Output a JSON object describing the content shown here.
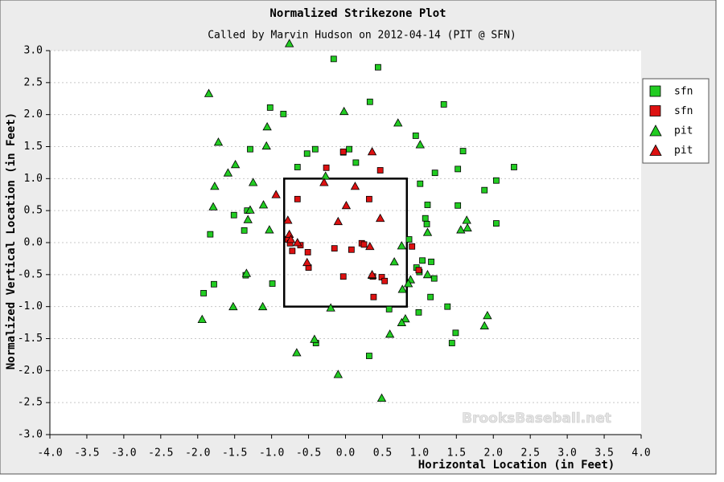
{
  "chart_data": {
    "type": "scatter",
    "title": "Normalized Strikezone Plot",
    "subtitle": "Called by Marvin Hudson on 2012-04-14 (PIT @ SFN)",
    "x_label": "Horizontal Location (in Feet)",
    "y_label": "Normalized Vertical Location (in Feet)",
    "watermark": "BrooksBaseball.net",
    "xlim": [
      -4,
      4
    ],
    "ylim": [
      -3,
      3
    ],
    "xticks": [
      {
        "value": -4,
        "label": "-4.0"
      },
      -3.5,
      {
        "value": -3,
        "label": "-3.0"
      },
      -2.5,
      {
        "value": -2,
        "label": "-2.0"
      },
      -1.5,
      {
        "value": -1,
        "label": "-1.0"
      },
      -0.5,
      {
        "value": 0,
        "label": "0.0"
      },
      0.5,
      {
        "value": 1,
        "label": "1.0"
      },
      1.5,
      {
        "value": 2,
        "label": "2.0"
      },
      2.5,
      {
        "value": 3,
        "label": "3.0"
      },
      3.5,
      {
        "value": 4,
        "label": "4.0"
      }
    ],
    "yticks": [
      {
        "value": -3,
        "label": "-3.0"
      },
      -2.5,
      {
        "value": -2,
        "label": "-2.0"
      },
      -1.5,
      {
        "value": -1,
        "label": "-1.0"
      },
      -0.5,
      {
        "value": 0,
        "label": "0.0"
      },
      0.5,
      {
        "value": 1,
        "label": "1.0"
      },
      1.5,
      {
        "value": 2,
        "label": "2.0"
      },
      2.5,
      {
        "value": 3,
        "label": "3.0"
      }
    ],
    "grid": true,
    "legend": "right",
    "strike_zone": {
      "x": [
        -0.83,
        0.83
      ],
      "y": [
        -1,
        1
      ]
    },
    "series": [
      {
        "name": "sfn",
        "marker": "square",
        "color": "#22cc22",
        "x": [
          -0.16,
          0.44,
          -1.02,
          -0.84,
          0.33,
          1.33,
          -1.29,
          -0.52,
          -0.41,
          0.05,
          -0.03,
          0.95,
          1.59,
          0.14,
          -0.65,
          1.21,
          1.52,
          2.28,
          2.04,
          1.88,
          1.01,
          1.11,
          1.52,
          1.08,
          1.1,
          2.04,
          -1.51,
          -1.33,
          -1.37,
          -1.83,
          0.86,
          1.04,
          1.16,
          0.96,
          1.0,
          1.2,
          -1.35,
          -0.99,
          -1.78,
          -1.92,
          1.15,
          1.38,
          0.59,
          0.99,
          1.49,
          1.44,
          -0.4,
          0.32
        ],
        "values": [
          2.87,
          2.74,
          2.11,
          2.01,
          2.2,
          2.16,
          1.46,
          1.39,
          1.46,
          1.46,
          1.41,
          1.67,
          1.43,
          1.25,
          1.18,
          1.09,
          1.15,
          1.18,
          0.97,
          0.82,
          0.92,
          0.59,
          0.58,
          0.38,
          0.29,
          0.3,
          0.43,
          0.5,
          0.19,
          0.13,
          0.05,
          -0.28,
          -0.3,
          -0.39,
          -0.46,
          -0.56,
          -0.51,
          -0.64,
          -0.65,
          -0.79,
          -0.85,
          -1.0,
          -1.04,
          -1.09,
          -1.41,
          -1.57,
          -1.57,
          -1.77
        ]
      },
      {
        "name": "sfn",
        "marker": "square",
        "color": "#dd1111",
        "x": [
          -0.03,
          -0.26,
          0.47,
          -0.65,
          0.32,
          -0.78,
          -0.75,
          -0.72,
          -0.61,
          -0.51,
          -0.15,
          0.08,
          0.22,
          0.25,
          0.9,
          -0.5,
          -0.03,
          0.49,
          0.53,
          0.99,
          0.37,
          0.38
        ],
        "values": [
          1.42,
          1.17,
          1.13,
          0.68,
          0.68,
          0.05,
          -0.01,
          -0.13,
          -0.04,
          -0.15,
          -0.09,
          -0.11,
          -0.01,
          -0.03,
          -0.06,
          -0.39,
          -0.53,
          -0.54,
          -0.6,
          -0.43,
          -0.53,
          -0.85
        ]
      },
      {
        "name": "pit",
        "marker": "triangle",
        "color": "#22cc22",
        "x": [
          -0.76,
          -1.85,
          -0.02,
          -1.06,
          0.71,
          -1.72,
          -1.07,
          1.01,
          -1.49,
          -1.59,
          -0.27,
          -1.25,
          -1.77,
          -1.79,
          -1.11,
          -1.29,
          -1.32,
          1.64,
          1.65,
          1.56,
          -1.03,
          1.11,
          0.76,
          0.66,
          0.36,
          0.88,
          1.11,
          0.85,
          0.77,
          -1.34,
          -1.52,
          -1.12,
          -0.2,
          -1.94,
          1.92,
          0.81,
          0.76,
          1.88,
          -0.42,
          0.6,
          -0.66,
          -0.1,
          0.49
        ],
        "values": [
          3.11,
          2.33,
          2.05,
          1.81,
          1.87,
          1.57,
          1.51,
          1.53,
          1.22,
          1.09,
          1.04,
          0.94,
          0.88,
          0.56,
          0.59,
          0.51,
          0.36,
          0.35,
          0.23,
          0.2,
          0.2,
          0.16,
          -0.05,
          -0.3,
          -0.51,
          -0.58,
          -0.5,
          -0.64,
          -0.73,
          -0.48,
          -1.0,
          -1.0,
          -1.02,
          -1.2,
          -1.14,
          -1.19,
          -1.25,
          -1.3,
          -1.51,
          -1.43,
          -1.72,
          -2.06,
          -2.43
        ]
      },
      {
        "name": "pit",
        "marker": "triangle",
        "color": "#dd1111",
        "x": [
          0.36,
          -0.29,
          0.13,
          -0.94,
          0.01,
          -0.78,
          0.47,
          -0.1,
          -0.76,
          -0.74,
          -0.65,
          0.33,
          -0.52,
          0.36
        ],
        "values": [
          1.42,
          0.94,
          0.88,
          0.75,
          0.58,
          0.35,
          0.38,
          0.33,
          0.13,
          0.05,
          0.0,
          -0.06,
          -0.31,
          -0.5
        ]
      }
    ]
  }
}
